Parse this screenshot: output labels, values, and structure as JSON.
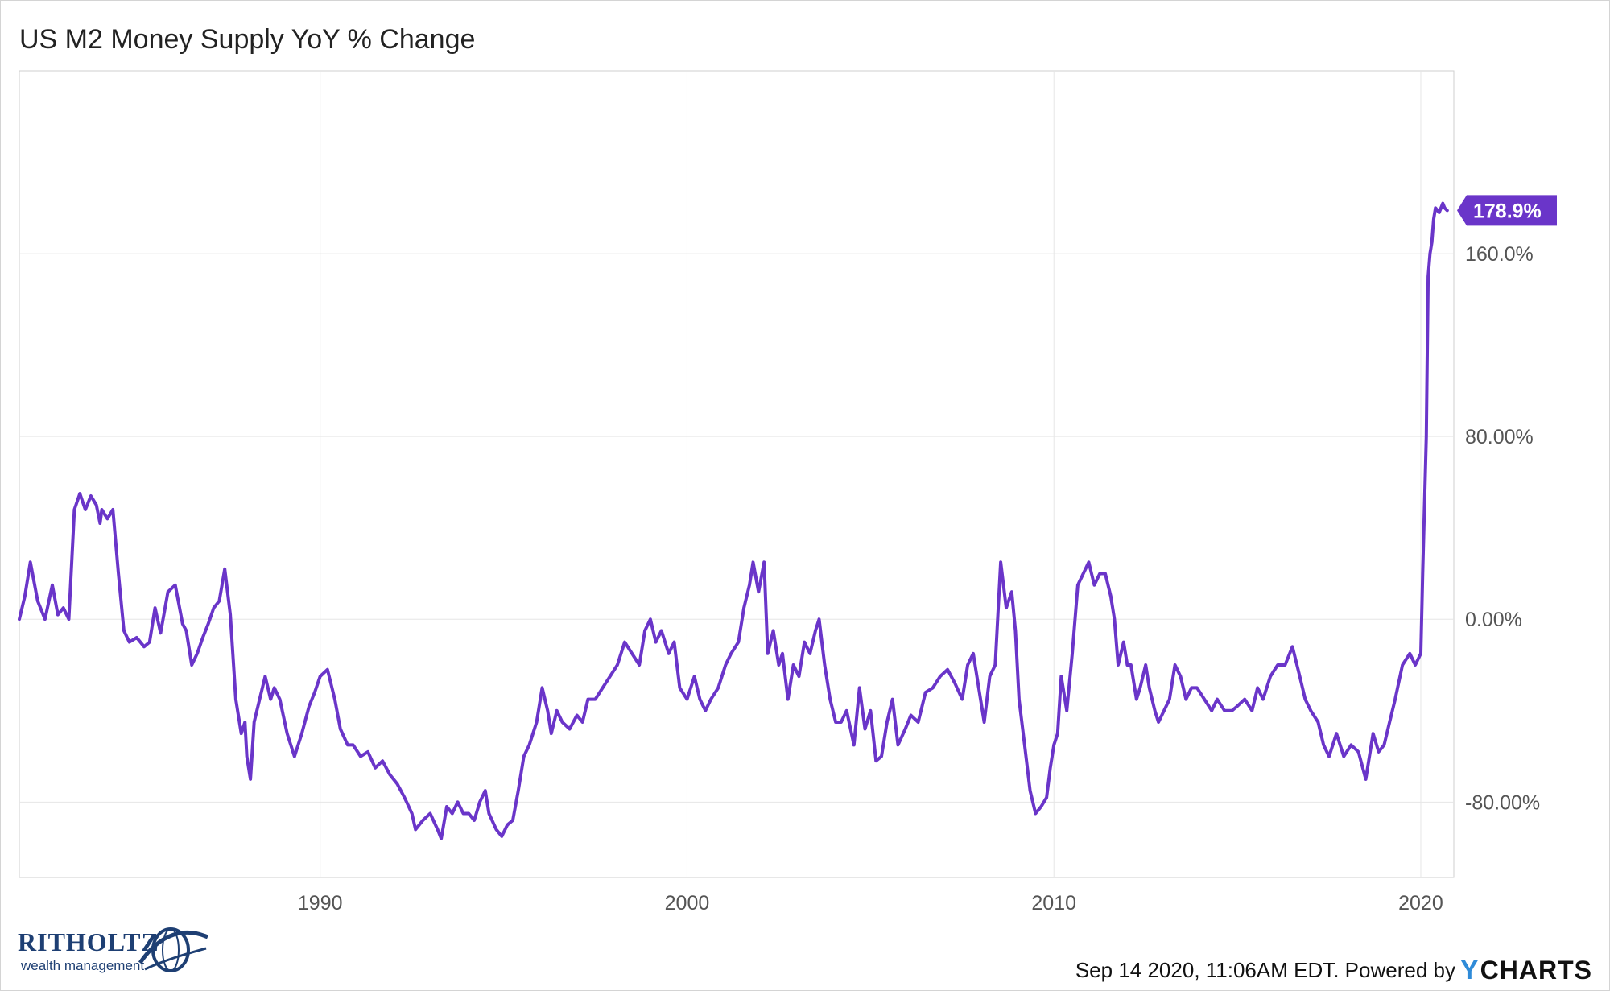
{
  "chart_data": {
    "type": "line",
    "title": "US M2 Money Supply YoY % Change",
    "xlabel": "",
    "ylabel": "",
    "x_ticks": [
      "1990",
      "2000",
      "2010",
      "2020"
    ],
    "y_ticks": [
      "160.0%",
      "80.00%",
      "0.00%",
      "-80.00%"
    ],
    "y_tick_values": [
      160,
      80,
      0,
      -80
    ],
    "xlim": [
      1981.8,
      2020.9
    ],
    "ylim": [
      -113,
      240
    ],
    "grid": true,
    "legend": "none",
    "last_value_label": "178.9%",
    "series": [
      {
        "color": "#6a35c9",
        "x": [
          1981.8,
          1981.95,
          1982.1,
          1982.3,
          1982.5,
          1982.7,
          1982.85,
          1983.0,
          1983.15,
          1983.3,
          1983.45,
          1983.6,
          1983.75,
          1983.9,
          1984.0,
          1984.05,
          1984.2,
          1984.35,
          1984.5,
          1984.65,
          1984.8,
          1985.0,
          1985.2,
          1985.35,
          1985.5,
          1985.65,
          1985.85,
          1986.05,
          1986.25,
          1986.35,
          1986.5,
          1986.65,
          1986.8,
          1986.95,
          1987.1,
          1987.25,
          1987.4,
          1987.55,
          1987.7,
          1987.85,
          1987.95,
          1988.0,
          1988.1,
          1988.2,
          1988.35,
          1988.5,
          1988.65,
          1988.75,
          1988.9,
          1989.1,
          1989.3,
          1989.5,
          1989.7,
          1989.85,
          1990.0,
          1990.2,
          1990.4,
          1990.55,
          1990.75,
          1990.9,
          1991.1,
          1991.3,
          1991.5,
          1991.7,
          1991.9,
          1992.1,
          1992.3,
          1992.5,
          1992.6,
          1992.8,
          1993.0,
          1993.2,
          1993.3,
          1993.45,
          1993.6,
          1993.75,
          1993.9,
          1994.05,
          1994.2,
          1994.35,
          1994.5,
          1994.6,
          1994.8,
          1994.95,
          1995.1,
          1995.25,
          1995.4,
          1995.55,
          1995.7,
          1995.9,
          1996.05,
          1996.2,
          1996.3,
          1996.45,
          1996.6,
          1996.8,
          1997.0,
          1997.15,
          1997.3,
          1997.5,
          1997.7,
          1997.9,
          1998.1,
          1998.3,
          1998.5,
          1998.7,
          1998.85,
          1999.0,
          1999.15,
          1999.3,
          1999.5,
          1999.65,
          1999.8,
          2000.0,
          2000.2,
          2000.35,
          2000.5,
          2000.65,
          2000.85,
          2001.05,
          2001.2,
          2001.4,
          2001.55,
          2001.7,
          2001.8,
          2001.95,
          2002.1,
          2002.2,
          2002.35,
          2002.5,
          2002.6,
          2002.75,
          2002.9,
          2003.05,
          2003.2,
          2003.35,
          2003.5,
          2003.6,
          2003.75,
          2003.9,
          2004.05,
          2004.2,
          2004.35,
          2004.55,
          2004.7,
          2004.85,
          2005.0,
          2005.15,
          2005.3,
          2005.45,
          2005.6,
          2005.75,
          2005.95,
          2006.1,
          2006.3,
          2006.5,
          2006.7,
          2006.9,
          2007.1,
          2007.3,
          2007.5,
          2007.65,
          2007.8,
          2007.95,
          2008.1,
          2008.25,
          2008.4,
          2008.55,
          2008.7,
          2008.85,
          2008.95,
          2009.05,
          2009.2,
          2009.35,
          2009.5,
          2009.65,
          2009.8,
          2009.9,
          2010.0,
          2010.1,
          2010.2,
          2010.35,
          2010.5,
          2010.65,
          2010.8,
          2010.95,
          2011.1,
          2011.25,
          2011.4,
          2011.55,
          2011.65,
          2011.75,
          2011.9,
          2012.0,
          2012.1,
          2012.25,
          2012.35,
          2012.5,
          2012.6,
          2012.75,
          2012.85,
          2013.0,
          2013.15,
          2013.3,
          2013.45,
          2013.6,
          2013.75,
          2013.9,
          2014.1,
          2014.3,
          2014.45,
          2014.65,
          2014.85,
          2015.0,
          2015.2,
          2015.4,
          2015.55,
          2015.7,
          2015.9,
          2016.1,
          2016.3,
          2016.5,
          2016.7,
          2016.85,
          2017.0,
          2017.2,
          2017.35,
          2017.5,
          2017.7,
          2017.9,
          2018.1,
          2018.3,
          2018.5,
          2018.7,
          2018.85,
          2019.0,
          2019.15,
          2019.3,
          2019.5,
          2019.7,
          2019.85,
          2020.0,
          2020.05,
          2020.15,
          2020.2,
          2020.25,
          2020.3,
          2020.35,
          2020.4,
          2020.5,
          2020.6,
          2020.65,
          2020.72
        ],
        "values": [
          0,
          10,
          25,
          8,
          0,
          15,
          2,
          5,
          0,
          48,
          55,
          48,
          54,
          50,
          42,
          48,
          44,
          48,
          20,
          -5,
          -10,
          -8,
          -12,
          -10,
          5,
          -6,
          12,
          15,
          -2,
          -5,
          -20,
          -15,
          -8,
          -2,
          5,
          8,
          22,
          2,
          -35,
          -50,
          -45,
          -60,
          -70,
          -45,
          -35,
          -25,
          -35,
          -30,
          -35,
          -50,
          -60,
          -50,
          -38,
          -32,
          -25,
          -22,
          -35,
          -48,
          -55,
          -55,
          -60,
          -58,
          -65,
          -62,
          -68,
          -72,
          -78,
          -85,
          -92,
          -88,
          -85,
          -92,
          -96,
          -82,
          -85,
          -80,
          -85,
          -85,
          -88,
          -80,
          -75,
          -85,
          -92,
          -95,
          -90,
          -88,
          -75,
          -60,
          -55,
          -45,
          -30,
          -40,
          -50,
          -40,
          -45,
          -48,
          -42,
          -45,
          -35,
          -35,
          -30,
          -25,
          -20,
          -10,
          -15,
          -20,
          -5,
          0,
          -10,
          -5,
          -15,
          -10,
          -30,
          -35,
          -25,
          -35,
          -40,
          -35,
          -30,
          -20,
          -15,
          -10,
          5,
          15,
          25,
          12,
          25,
          -15,
          -5,
          -20,
          -15,
          -35,
          -20,
          -25,
          -10,
          -15,
          -5,
          0,
          -20,
          -35,
          -45,
          -45,
          -40,
          -55,
          -30,
          -48,
          -40,
          -62,
          -60,
          -45,
          -35,
          -55,
          -48,
          -42,
          -45,
          -32,
          -30,
          -25,
          -22,
          -28,
          -35,
          -20,
          -15,
          -30,
          -45,
          -25,
          -20,
          25,
          5,
          12,
          -5,
          -35,
          -55,
          -75,
          -85,
          -82,
          -78,
          -65,
          -55,
          -50,
          -25,
          -40,
          -15,
          15,
          20,
          25,
          15,
          20,
          20,
          10,
          0,
          -20,
          -10,
          -20,
          -20,
          -35,
          -30,
          -20,
          -30,
          -40,
          -45,
          -40,
          -35,
          -20,
          -25,
          -35,
          -30,
          -30,
          -35,
          -40,
          -35,
          -40,
          -40,
          -38,
          -35,
          -40,
          -30,
          -35,
          -25,
          -20,
          -20,
          -12,
          -25,
          -35,
          -40,
          -45,
          -55,
          -60,
          -50,
          -60,
          -55,
          -58,
          -70,
          -50,
          -58,
          -55,
          -45,
          -35,
          -20,
          -15,
          -20,
          -15,
          20,
          80,
          150,
          160,
          165,
          175,
          180,
          178,
          182,
          180,
          178.9
        ]
      }
    ]
  },
  "brand": {
    "name": "RITHOLTZ",
    "sub": "wealth management",
    "mark_icon": "ritholtz-globe-icon"
  },
  "footer": {
    "timestamp": "Sep 14 2020, 11:06AM EDT. Powered by",
    "logo_y": "Y",
    "logo_rest": "CHARTS"
  }
}
